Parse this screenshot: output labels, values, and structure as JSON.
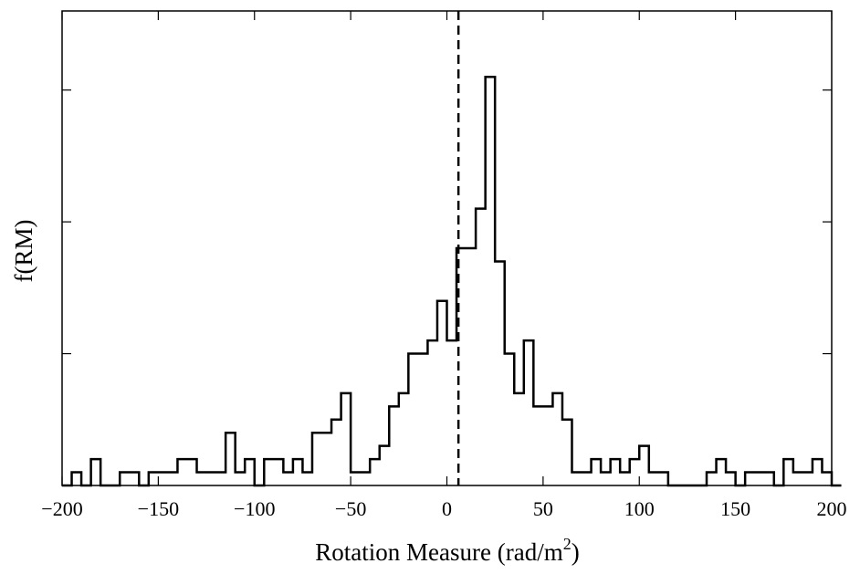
{
  "chart_data": {
    "type": "histogram",
    "title": "",
    "xlabel": "Rotation Measure (rad/m",
    "xlabel_superscript": "2",
    "xlabel_suffix": ")",
    "ylabel": "f(RM)",
    "xlim": [
      -200,
      200
    ],
    "ylim": [
      0,
      36
    ],
    "xticks": [
      -200,
      -150,
      -100,
      -50,
      0,
      50,
      100,
      150,
      200
    ],
    "xtick_labels": [
      "−200",
      "−150",
      "−100",
      "−50",
      "0",
      "50",
      "100",
      "150",
      "200"
    ],
    "y_tick_values": [
      10,
      20,
      30
    ],
    "y_tick_labels_shown": false,
    "grid": false,
    "bin_width": 5,
    "bin_edges_start": -200,
    "counts": [
      0,
      1,
      0,
      2,
      0,
      0,
      1,
      1,
      0,
      1,
      1,
      1,
      2,
      2,
      1,
      1,
      1,
      4,
      1,
      2,
      0,
      2,
      2,
      1,
      2,
      1,
      4,
      4,
      5,
      7,
      1,
      1,
      2,
      3,
      6,
      7,
      10,
      10,
      11,
      14,
      11,
      18,
      18,
      21,
      31,
      17,
      10,
      7,
      11,
      6,
      6,
      7,
      5,
      1,
      1,
      2,
      1,
      2,
      1,
      2,
      3,
      1,
      1,
      0,
      0,
      0,
      0,
      1,
      2,
      1,
      0,
      1,
      1,
      1,
      0,
      2,
      1,
      1,
      2,
      1,
      0
    ],
    "reference_line": {
      "x": 6,
      "style": "dashed"
    },
    "colors": {
      "line": "#000000",
      "background": "#ffffff"
    }
  }
}
